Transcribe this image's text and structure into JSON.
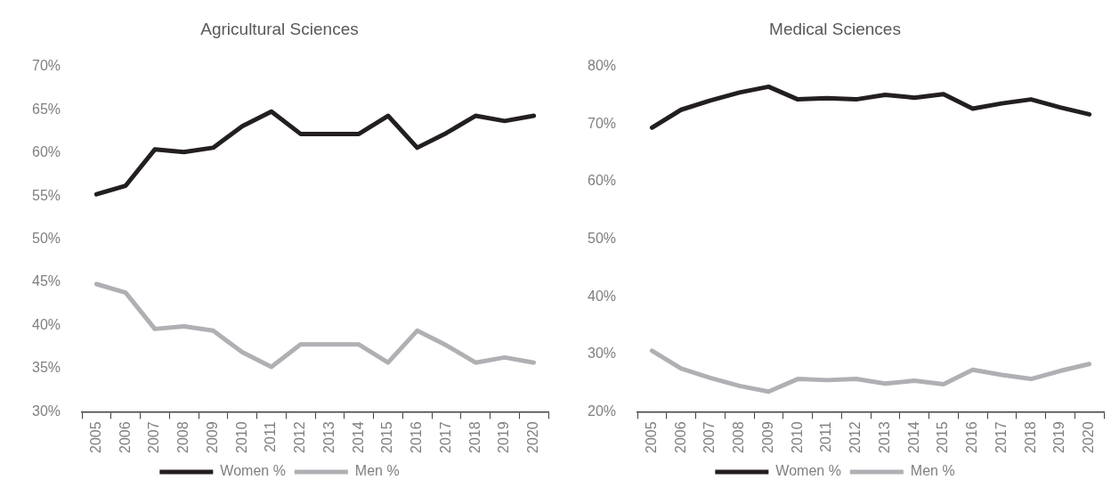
{
  "chart_data": [
    {
      "type": "line",
      "title": "Agricultural Sciences",
      "categories": [
        "2005",
        "2006",
        "2007",
        "2008",
        "2009",
        "2010",
        "2011",
        "2012",
        "2013",
        "2014",
        "2015",
        "2016",
        "2017",
        "2018",
        "2019",
        "2020"
      ],
      "series": [
        {
          "name": "Women %",
          "color": "#231f20",
          "values": [
            55.2,
            56.2,
            60.4,
            60.1,
            60.6,
            63.1,
            64.8,
            62.2,
            62.2,
            62.2,
            64.3,
            60.6,
            62.3,
            64.3,
            63.7,
            64.3
          ]
        },
        {
          "name": "Men %",
          "color": "#b0b0b4",
          "values": [
            44.8,
            43.8,
            39.6,
            39.9,
            39.4,
            36.9,
            35.2,
            37.8,
            37.8,
            37.8,
            35.7,
            39.4,
            37.7,
            35.7,
            36.3,
            35.7
          ]
        }
      ],
      "ylim": [
        30,
        70
      ],
      "yticks": [
        {
          "value": 30,
          "label": "30%"
        },
        {
          "value": 35,
          "label": "35%"
        },
        {
          "value": 40,
          "label": "40%"
        },
        {
          "value": 45,
          "label": "45%"
        },
        {
          "value": 50,
          "label": "50%"
        },
        {
          "value": 55,
          "label": "55%"
        },
        {
          "value": 60,
          "label": "60%"
        },
        {
          "value": 65,
          "label": "65%"
        },
        {
          "value": 70,
          "label": "70%"
        }
      ],
      "grid": false,
      "legend": "bottom",
      "marker": "none",
      "line_style": "solid"
    },
    {
      "type": "line",
      "title": "Medical Sciences",
      "categories": [
        "2005",
        "2006",
        "2007",
        "2008",
        "2009",
        "2010",
        "2011",
        "2012",
        "2013",
        "2014",
        "2015",
        "2016",
        "2017",
        "2018",
        "2019",
        "2020"
      ],
      "series": [
        {
          "name": "Women %",
          "color": "#231f20",
          "values": [
            69.4,
            72.5,
            74.1,
            75.5,
            76.5,
            74.3,
            74.5,
            74.3,
            75.1,
            74.6,
            75.2,
            72.7,
            73.6,
            74.3,
            72.9,
            71.7
          ]
        },
        {
          "name": "Men %",
          "color": "#b0b0b4",
          "values": [
            30.6,
            27.5,
            25.9,
            24.5,
            23.5,
            25.7,
            25.5,
            25.7,
            24.9,
            25.4,
            24.8,
            27.3,
            26.4,
            25.7,
            27.1,
            28.3
          ]
        }
      ],
      "ylim": [
        20,
        80
      ],
      "yticks": [
        {
          "value": 20,
          "label": "20%"
        },
        {
          "value": 30,
          "label": "30%"
        },
        {
          "value": 40,
          "label": "40%"
        },
        {
          "value": 50,
          "label": "50%"
        },
        {
          "value": 60,
          "label": "60%"
        },
        {
          "value": 70,
          "label": "70%"
        },
        {
          "value": 80,
          "label": "80%"
        }
      ],
      "grid": false,
      "legend": "bottom",
      "marker": "none",
      "line_style": "solid"
    }
  ]
}
